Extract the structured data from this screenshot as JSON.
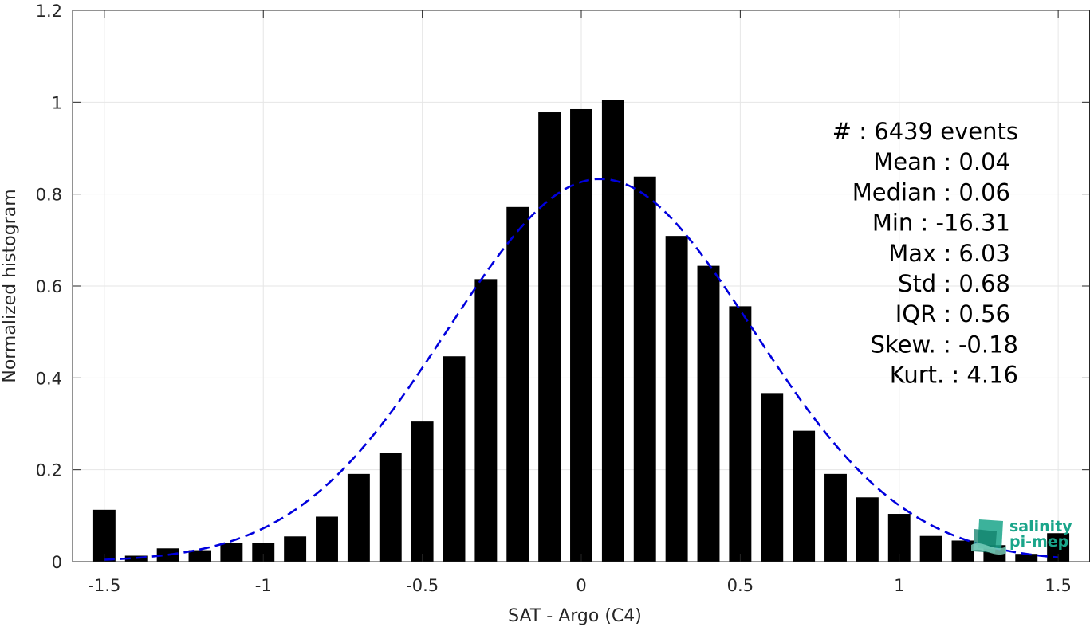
{
  "chart_data": {
    "type": "bar",
    "xlabel": "SAT - Argo (C4)",
    "ylabel": "Normalized histogram",
    "xlim": [
      -1.6,
      1.6
    ],
    "ylim": [
      0,
      1.2
    ],
    "x_ticks": [
      "-1.5",
      "-1",
      "-0.5",
      "0",
      "0.5",
      "1",
      "1.5"
    ],
    "x_tick_values": [
      -1.5,
      -1,
      -0.5,
      0,
      0.5,
      1,
      1.5
    ],
    "y_ticks": [
      "0",
      "0.2",
      "0.4",
      "0.6",
      "0.8",
      "1",
      "1.2"
    ],
    "y_tick_values": [
      0,
      0.2,
      0.4,
      0.6,
      0.8,
      1.0,
      1.2
    ],
    "grid": true,
    "bar_width": 0.07,
    "bars": {
      "x": [
        -1.5,
        -1.4,
        -1.3,
        -1.2,
        -1.1,
        -1.0,
        -0.9,
        -0.8,
        -0.7,
        -0.6,
        -0.5,
        -0.4,
        -0.3,
        -0.2,
        -0.1,
        0.0,
        0.1,
        0.2,
        0.3,
        0.4,
        0.5,
        0.6,
        0.7,
        0.8,
        0.9,
        1.0,
        1.1,
        1.2,
        1.3,
        1.4,
        1.5
      ],
      "values": [
        0.113,
        0.013,
        0.029,
        0.025,
        0.04,
        0.04,
        0.055,
        0.098,
        0.191,
        0.237,
        0.305,
        0.447,
        0.615,
        0.772,
        0.978,
        0.985,
        1.005,
        0.838,
        0.709,
        0.644,
        0.556,
        0.367,
        0.285,
        0.191,
        0.14,
        0.104,
        0.056,
        0.046,
        0.036,
        0.017,
        0.062
      ]
    },
    "fit_curve": {
      "style": "dashed",
      "color": "#0000dd",
      "mean": 0.06,
      "std": 0.48,
      "peak": 0.833,
      "x_range": [
        -1.5,
        1.5
      ]
    },
    "stats_lines": [
      "#  : 6439 events",
      "Mean : 0.04",
      "Median : 0.06",
      "Min : -16.31",
      "Max : 6.03",
      "Std : 0.68",
      "IQR : 0.56",
      "Skew. : -0.18",
      "Kurt. : 4.16"
    ],
    "colors": {
      "bars": "#000000",
      "grid": "#e6e6e6",
      "axes": "#262626"
    }
  },
  "logo": {
    "line1": "salinity",
    "line2": "pi-mep",
    "color": "#1aa58a"
  }
}
